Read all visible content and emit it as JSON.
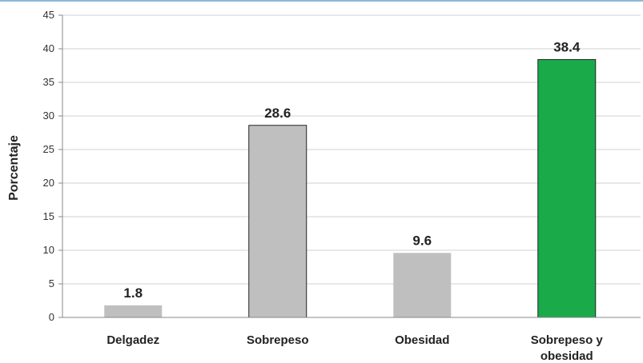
{
  "chart_data": {
    "type": "bar",
    "categories": [
      "Delgadez",
      "Sobrepeso",
      "Obesidad",
      "Sobrepeso y obesidad"
    ],
    "category_lines": [
      [
        "Delgadez"
      ],
      [
        "Sobrepeso"
      ],
      [
        "Obesidad"
      ],
      [
        "Sobrepeso y",
        "obesidad"
      ]
    ],
    "values": [
      1.8,
      28.6,
      9.6,
      38.4
    ],
    "value_labels": [
      "1.8",
      "28.6",
      "9.6",
      "38.4"
    ],
    "bar_colors": [
      "#bfbfbf",
      "#bfbfbf",
      "#bfbfbf",
      "#1aaa4a"
    ],
    "title": "",
    "xlabel": "",
    "ylabel": "Porcentaje",
    "ylim": [
      0,
      45
    ],
    "yticks": [
      0,
      5,
      10,
      15,
      20,
      25,
      30,
      35,
      40,
      45
    ],
    "grid": true
  }
}
